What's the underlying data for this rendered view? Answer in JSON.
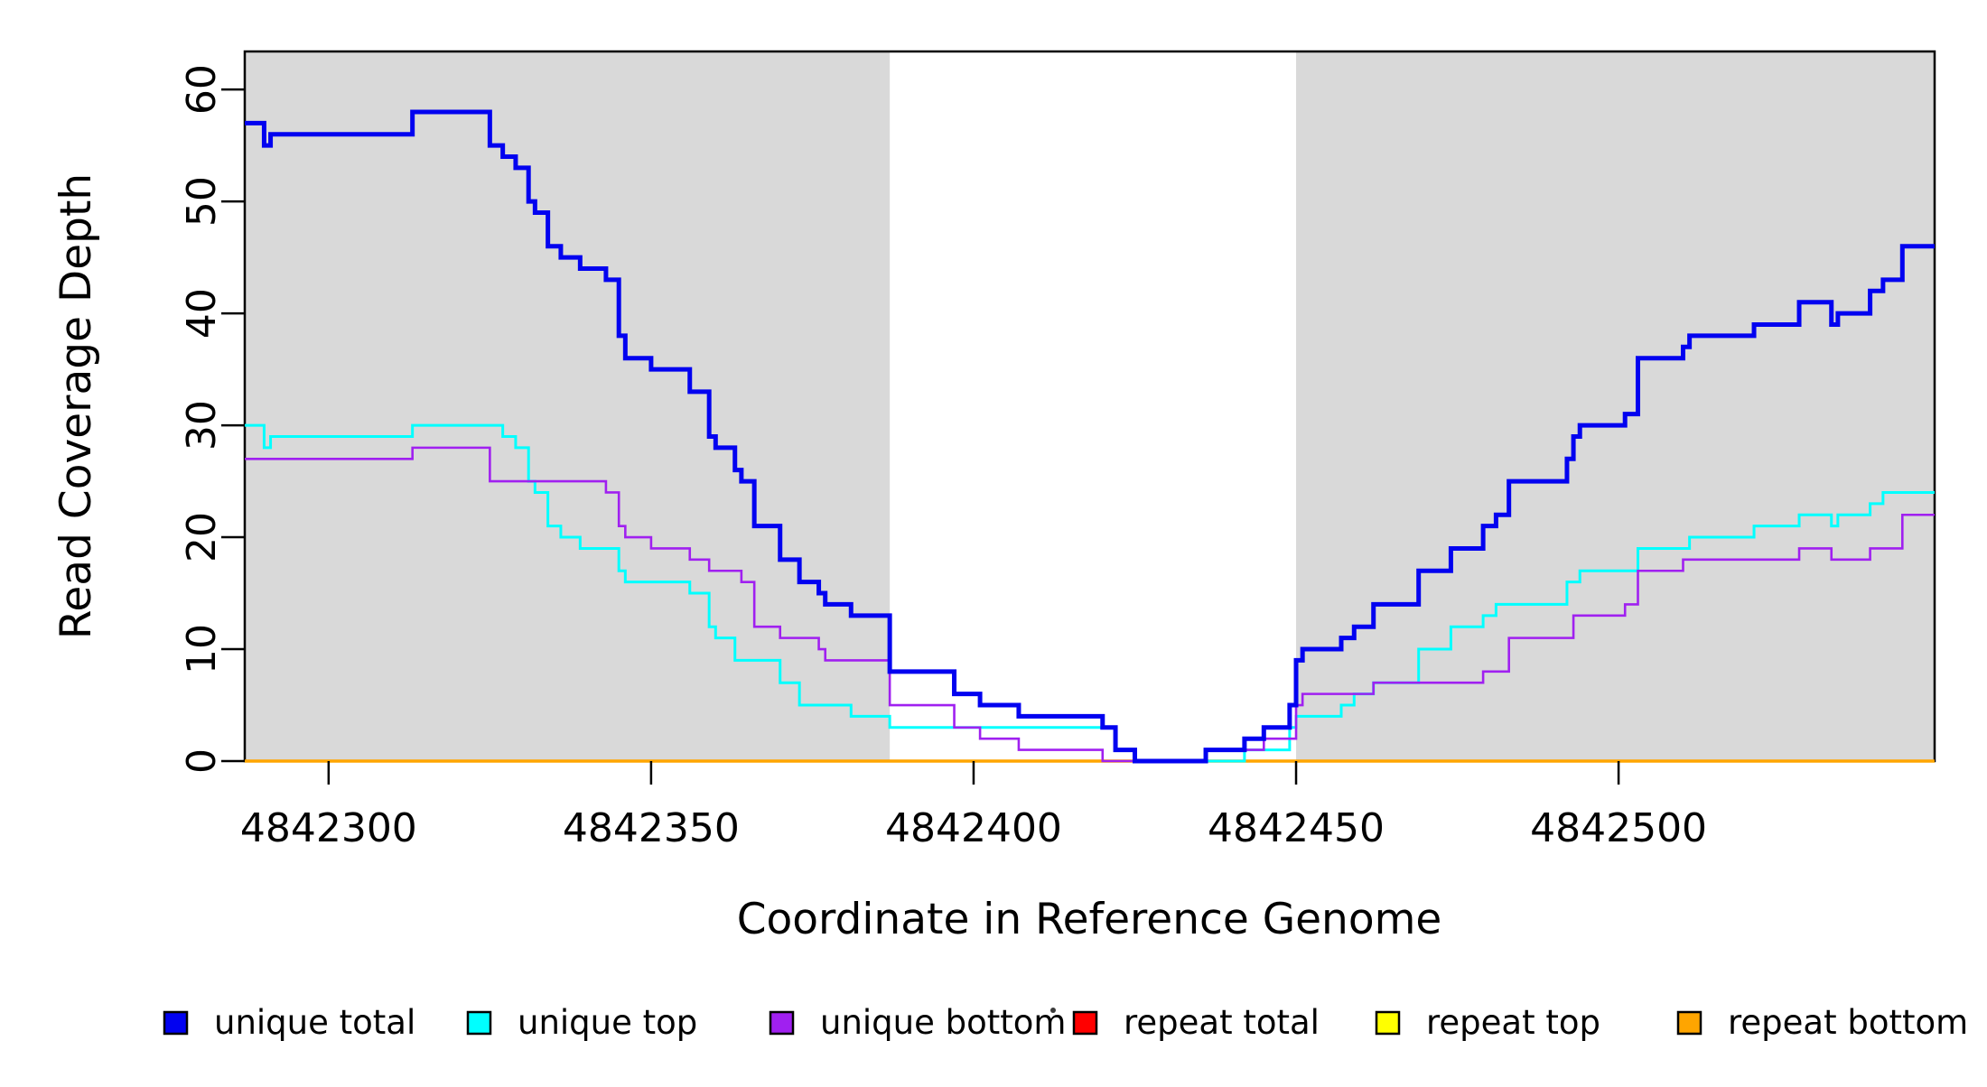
{
  "chart_data": {
    "type": "line",
    "step": true,
    "title": "",
    "xlabel": "Coordinate in Reference Genome",
    "ylabel": "Read Coverage Depth",
    "xlim": [
      4842287,
      4842549
    ],
    "ylim": [
      0,
      63.4
    ],
    "x_ticks": [
      4842300,
      4842350,
      4842400,
      4842450,
      4842500
    ],
    "y_ticks": [
      0,
      10,
      20,
      30,
      40,
      50,
      60
    ],
    "grid": false,
    "legend_position": "bottom",
    "plot_background": "#ffffff",
    "shaded_regions": [
      {
        "from": 4842287,
        "to": 4842387,
        "color": "#d9d9d9"
      },
      {
        "from": 4842450,
        "to": 4842549,
        "color": "#d9d9d9"
      }
    ],
    "series": [
      {
        "name": "repeat total",
        "color": "#ff0000",
        "line_width": 3,
        "steps": [
          [
            4842287,
            0
          ]
        ]
      },
      {
        "name": "repeat top",
        "color": "#ffff00",
        "line_width": 3,
        "steps": [
          [
            4842287,
            0
          ]
        ]
      },
      {
        "name": "repeat bottom",
        "color": "#ffa500",
        "line_width": 3.6,
        "steps": [
          [
            4842287,
            0
          ]
        ]
      },
      {
        "name": "unique top",
        "color": "#00ffff",
        "line_width": 3,
        "steps": [
          [
            4842287,
            30
          ],
          [
            4842290,
            28
          ],
          [
            4842291,
            29
          ],
          [
            4842313,
            30
          ],
          [
            4842327,
            29
          ],
          [
            4842329,
            28
          ],
          [
            4842331,
            25
          ],
          [
            4842332,
            24
          ],
          [
            4842334,
            21
          ],
          [
            4842336,
            20
          ],
          [
            4842339,
            19
          ],
          [
            4842345,
            17
          ],
          [
            4842346,
            16
          ],
          [
            4842356,
            15
          ],
          [
            4842359,
            12
          ],
          [
            4842360,
            11
          ],
          [
            4842363,
            9
          ],
          [
            4842370,
            7
          ],
          [
            4842373,
            5
          ],
          [
            4842381,
            4
          ],
          [
            4842387,
            3
          ],
          [
            4842422,
            1
          ],
          [
            4842425,
            0
          ],
          [
            4842442,
            1
          ],
          [
            4842449,
            3
          ],
          [
            4842450,
            4
          ],
          [
            4842457,
            5
          ],
          [
            4842459,
            6
          ],
          [
            4842462,
            7
          ],
          [
            4842469,
            10
          ],
          [
            4842474,
            12
          ],
          [
            4842479,
            13
          ],
          [
            4842481,
            14
          ],
          [
            4842492,
            16
          ],
          [
            4842494,
            17
          ],
          [
            4842503,
            19
          ],
          [
            4842511,
            20
          ],
          [
            4842521,
            21
          ],
          [
            4842528,
            22
          ],
          [
            4842533,
            21
          ],
          [
            4842534,
            22
          ],
          [
            4842539,
            23
          ],
          [
            4842541,
            24
          ]
        ]
      },
      {
        "name": "unique bottom",
        "color": "#a020f0",
        "line_width": 2.6,
        "steps": [
          [
            4842287,
            27
          ],
          [
            4842313,
            28
          ],
          [
            4842325,
            25
          ],
          [
            4842343,
            24
          ],
          [
            4842345,
            21
          ],
          [
            4842346,
            20
          ],
          [
            4842350,
            19
          ],
          [
            4842356,
            18
          ],
          [
            4842359,
            17
          ],
          [
            4842364,
            16
          ],
          [
            4842366,
            12
          ],
          [
            4842370,
            11
          ],
          [
            4842376,
            10
          ],
          [
            4842377,
            9
          ],
          [
            4842387,
            5
          ],
          [
            4842397,
            3
          ],
          [
            4842401,
            2
          ],
          [
            4842407,
            1
          ],
          [
            4842420,
            0
          ],
          [
            4842436,
            1
          ],
          [
            4842445,
            2
          ],
          [
            4842450,
            5
          ],
          [
            4842451,
            6
          ],
          [
            4842462,
            7
          ],
          [
            4842479,
            8
          ],
          [
            4842483,
            11
          ],
          [
            4842493,
            13
          ],
          [
            4842501,
            14
          ],
          [
            4842503,
            17
          ],
          [
            4842510,
            18
          ],
          [
            4842528,
            19
          ],
          [
            4842533,
            18
          ],
          [
            4842539,
            19
          ],
          [
            4842544,
            22
          ]
        ]
      },
      {
        "name": "unique total",
        "color": "#0202f0",
        "line_width": 5,
        "steps": [
          [
            4842287,
            57
          ],
          [
            4842290,
            55
          ],
          [
            4842291,
            56
          ],
          [
            4842313,
            58
          ],
          [
            4842325,
            55
          ],
          [
            4842327,
            54
          ],
          [
            4842329,
            53
          ],
          [
            4842331,
            50
          ],
          [
            4842332,
            49
          ],
          [
            4842334,
            46
          ],
          [
            4842336,
            45
          ],
          [
            4842339,
            44
          ],
          [
            4842343,
            43
          ],
          [
            4842345,
            38
          ],
          [
            4842346,
            36
          ],
          [
            4842350,
            35
          ],
          [
            4842356,
            33
          ],
          [
            4842359,
            29
          ],
          [
            4842360,
            28
          ],
          [
            4842363,
            26
          ],
          [
            4842364,
            25
          ],
          [
            4842366,
            21
          ],
          [
            4842370,
            18
          ],
          [
            4842373,
            16
          ],
          [
            4842376,
            15
          ],
          [
            4842377,
            14
          ],
          [
            4842381,
            13
          ],
          [
            4842387,
            8
          ],
          [
            4842397,
            6
          ],
          [
            4842401,
            5
          ],
          [
            4842407,
            4
          ],
          [
            4842420,
            3
          ],
          [
            4842422,
            1
          ],
          [
            4842425,
            0
          ],
          [
            4842436,
            1
          ],
          [
            4842442,
            2
          ],
          [
            4842445,
            3
          ],
          [
            4842449,
            5
          ],
          [
            4842450,
            9
          ],
          [
            4842451,
            10
          ],
          [
            4842457,
            11
          ],
          [
            4842459,
            12
          ],
          [
            4842462,
            14
          ],
          [
            4842469,
            17
          ],
          [
            4842474,
            19
          ],
          [
            4842479,
            21
          ],
          [
            4842481,
            22
          ],
          [
            4842483,
            25
          ],
          [
            4842492,
            27
          ],
          [
            4842493,
            29
          ],
          [
            4842494,
            30
          ],
          [
            4842501,
            31
          ],
          [
            4842503,
            36
          ],
          [
            4842510,
            37
          ],
          [
            4842511,
            38
          ],
          [
            4842521,
            39
          ],
          [
            4842528,
            41
          ],
          [
            4842533,
            39
          ],
          [
            4842534,
            40
          ],
          [
            4842539,
            42
          ],
          [
            4842541,
            43
          ],
          [
            4842544,
            46
          ]
        ]
      }
    ]
  },
  "legend": {
    "items": [
      {
        "label": "unique total",
        "color": "#0202f0"
      },
      {
        "label": "unique top",
        "color": "#00ffff"
      },
      {
        "label": "unique bottom",
        "color": "#a020f0"
      },
      {
        "label": "repeat total",
        "color": "#ff0000"
      },
      {
        "label": "repeat top",
        "color": "#ffff00"
      },
      {
        "label": "repeat bottom",
        "color": "#ffa500"
      }
    ]
  },
  "frame": {
    "box_color": "#000000",
    "text_color": "#000000"
  }
}
